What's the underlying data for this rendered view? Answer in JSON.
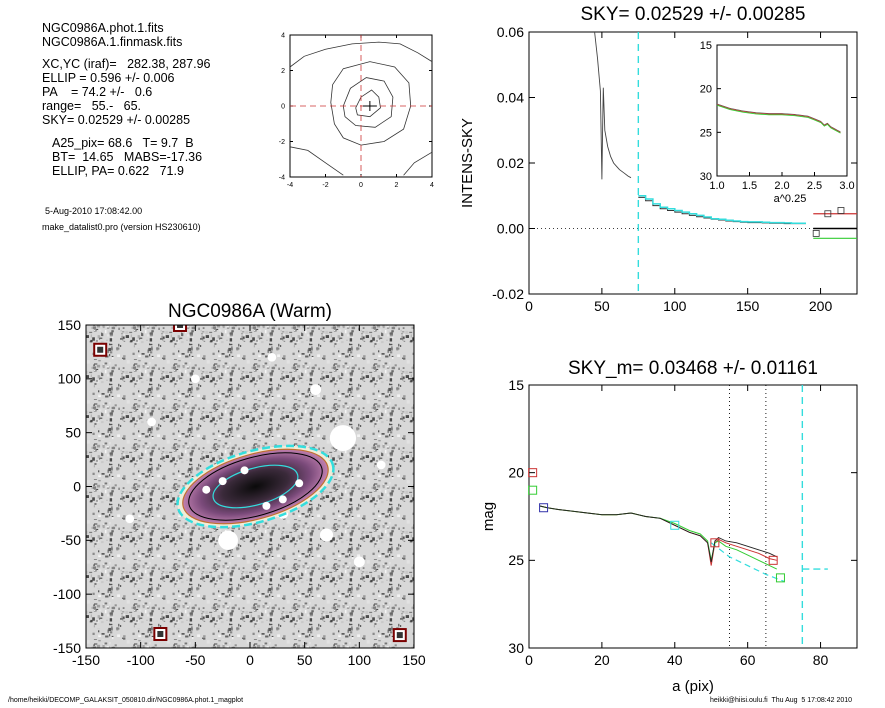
{
  "info": {
    "line1": "NGC0986A.phot.1.fits",
    "line2": "NGC0986A.1.finmask.fits",
    "line3": "XC,YC (iraf)=   282.38, 287.96",
    "line4": "ELLIP = 0.596 +/- 0.006",
    "line5": "PA    = 74.2 +/-   0.6",
    "line6": "range=   55.-   65.",
    "line7": "SKY= 0.02529 +/- 0.00285",
    "line8": "A25_pix= 68.6   T= 9.7  B",
    "line9": "BT=  14.65   MABS=-17.36",
    "line10": "ELLIP, PA= 0.622   71.9",
    "date": "5-Aug-2010 17:08:42.00",
    "version": "make_datalist0.pro (version HS230610)"
  },
  "footer": {
    "path": "/home/heikki/DECOMP_GALAKSIT_050810.dir/NGC0986A.phot.1_magplot",
    "user": "heikki@hiisi.oulu.fi  Thu Aug  5 17:08:42 2010"
  },
  "colors": {
    "cyan": "#33dddd",
    "red": "#cc3333",
    "green": "#33cc33",
    "grey": "#888888",
    "dark": "#222222"
  },
  "chart_data": [
    {
      "id": "contour",
      "type": "line",
      "title": "",
      "xlim": [
        -4,
        4
      ],
      "ylim": [
        -4,
        4
      ],
      "xticks": [
        -4,
        -2,
        0,
        2,
        4
      ],
      "yticks": [
        -4,
        -2,
        0,
        2,
        4
      ],
      "xtick_labels": [
        "-4",
        "-2",
        "0",
        "2",
        "4"
      ],
      "ytick_labels": [
        "-4",
        "-2",
        "0",
        "2",
        "4"
      ],
      "center": [
        0.5,
        0.0
      ],
      "contours": [
        [
          [
            -0.3,
            -0.1
          ],
          [
            0.0,
            0.5
          ],
          [
            0.6,
            0.9
          ],
          [
            1.0,
            0.5
          ],
          [
            1.1,
            -0.1
          ],
          [
            0.5,
            -0.6
          ],
          [
            -0.2,
            -0.5
          ],
          [
            -0.3,
            -0.1
          ]
        ],
        [
          [
            -1.0,
            0.0
          ],
          [
            -0.6,
            1.0
          ],
          [
            0.3,
            1.6
          ],
          [
            1.3,
            1.4
          ],
          [
            1.8,
            0.5
          ],
          [
            1.7,
            -0.6
          ],
          [
            0.8,
            -1.2
          ],
          [
            -0.3,
            -1.1
          ],
          [
            -0.9,
            -0.6
          ],
          [
            -1.0,
            0.0
          ]
        ],
        [
          [
            -1.6,
            1.2
          ],
          [
            -1.0,
            2.1
          ],
          [
            0.5,
            2.5
          ],
          [
            1.9,
            2.2
          ],
          [
            2.7,
            1.3
          ],
          [
            2.8,
            0.0
          ],
          [
            2.4,
            -1.3
          ],
          [
            1.3,
            -2.0
          ],
          [
            0.0,
            -2.2
          ],
          [
            -1.0,
            -1.8
          ],
          [
            -1.5,
            -1.0
          ],
          [
            -1.7,
            0.2
          ],
          [
            -1.6,
            1.2
          ]
        ],
        [
          [
            -4.0,
            2.2
          ],
          [
            -3.2,
            2.8
          ],
          [
            -2.0,
            3.2
          ],
          [
            -0.5,
            3.5
          ],
          [
            1.0,
            3.6
          ],
          [
            2.2,
            3.5
          ],
          [
            3.2,
            3.0
          ],
          [
            4.0,
            2.5
          ]
        ],
        [
          [
            -4.0,
            -2.3
          ],
          [
            -3.0,
            -2.5
          ],
          [
            -2.0,
            -3.2
          ],
          [
            -1.0,
            -3.9
          ]
        ],
        [
          [
            2.4,
            -3.9
          ],
          [
            3.0,
            -3.2
          ],
          [
            4.0,
            -2.6
          ]
        ]
      ]
    },
    {
      "id": "sky",
      "type": "line",
      "title": "SKY= 0.02529 +/- 0.00285",
      "xlabel": "",
      "ylabel": "INTENS-SKY",
      "xlim": [
        0,
        225
      ],
      "ylim": [
        -0.02,
        0.06
      ],
      "xticks": [
        0,
        50,
        100,
        150,
        200
      ],
      "xtick_labels": [
        "0",
        "50",
        "100",
        "150",
        "200"
      ],
      "yticks": [
        -0.02,
        0.0,
        0.02,
        0.04,
        0.06
      ],
      "ytick_labels": [
        "-0.02",
        "0.00",
        "0.02",
        "0.04",
        "0.06"
      ],
      "profile": {
        "x": [
          45,
          47,
          49,
          50,
          50.5,
          51,
          52,
          54,
          56,
          58,
          60,
          62,
          65,
          68,
          70
        ],
        "y": [
          0.06,
          0.052,
          0.042,
          0.015,
          0.03,
          0.043,
          0.03,
          0.025,
          0.022,
          0.02,
          0.019,
          0.018,
          0.017,
          0.016,
          0.0155
        ]
      },
      "steps_cyan": {
        "x": [
          75,
          80,
          85,
          90,
          95,
          100,
          105,
          110,
          115,
          120,
          125,
          130,
          135,
          140,
          145,
          150,
          155,
          160,
          165,
          170,
          175,
          180,
          185
        ],
        "y": [
          0.01,
          0.009,
          0.0075,
          0.0065,
          0.006,
          0.0055,
          0.005,
          0.0045,
          0.004,
          0.0035,
          0.003,
          0.0028,
          0.0025,
          0.0023,
          0.0021,
          0.002,
          0.002,
          0.0019,
          0.0018,
          0.0018,
          0.0017,
          0.0016,
          0.0016
        ]
      },
      "steps_dark": {
        "x": [
          75,
          80,
          85,
          90,
          95,
          100,
          105,
          110,
          115,
          120,
          125,
          130,
          135,
          140,
          145,
          150,
          155,
          160,
          165,
          170,
          175,
          180,
          185
        ],
        "y": [
          0.0095,
          0.0085,
          0.007,
          0.006,
          0.0055,
          0.005,
          0.0045,
          0.004,
          0.0036,
          0.0032,
          0.0028,
          0.0026,
          0.0023,
          0.0021,
          0.0019,
          0.0018,
          0.0018,
          0.0017,
          0.0016,
          0.0016,
          0.0015,
          0.0015,
          0.0015
        ]
      },
      "squares": [
        [
          197,
          -0.0015
        ],
        [
          205,
          0.0045
        ],
        [
          214,
          0.0055
        ]
      ],
      "sky_lines": {
        "black": 0.0,
        "green": -0.003,
        "red": 0.0045,
        "x_range": [
          195,
          225
        ]
      },
      "vline_cyan": 75,
      "inset": {
        "xlim": [
          1.0,
          3.0
        ],
        "ylim": [
          30,
          15
        ],
        "xlabel": "a^0.25",
        "xticks": [
          1.0,
          1.5,
          2.0,
          2.5,
          3.0
        ],
        "xtick_labels": [
          "1.0",
          "1.5",
          "2.0",
          "2.5",
          "3.0"
        ],
        "yticks": [
          15,
          20,
          25,
          30
        ],
        "ytick_labels": [
          "15",
          "20",
          "25",
          "30"
        ],
        "x": [
          1.0,
          1.2,
          1.4,
          1.6,
          1.8,
          2.0,
          2.2,
          2.4,
          2.5,
          2.6,
          2.65,
          2.7,
          2.75,
          2.8,
          2.85,
          2.9
        ],
        "y": [
          21.8,
          22.3,
          22.6,
          22.8,
          22.9,
          22.9,
          23.0,
          23.2,
          23.5,
          23.8,
          24.2,
          24.0,
          24.4,
          24.6,
          24.8,
          25.0
        ]
      }
    },
    {
      "id": "image",
      "type": "heatmap",
      "title": "NGC0986A (Warm)",
      "xlim": [
        -150,
        150
      ],
      "ylim": [
        -150,
        150
      ],
      "xticks": [
        -150,
        -100,
        -50,
        0,
        50,
        100,
        150
      ],
      "xtick_labels": [
        "-150",
        "-100",
        "-50",
        "0",
        "50",
        "100",
        "150"
      ],
      "yticks": [
        -150,
        -100,
        -50,
        0,
        50,
        100,
        150
      ],
      "ytick_labels": [
        "-150",
        "-100",
        "-50",
        "0",
        "50",
        "100",
        "150"
      ],
      "galaxy": {
        "cx": 5,
        "cy": 0,
        "a": 70,
        "b": 30,
        "pa_deg": 74.2
      },
      "inner_ellipse": {
        "a": 40,
        "b": 17
      },
      "masked_boxes": [
        [
          -137,
          127
        ],
        [
          -64,
          150
        ],
        [
          -82,
          -137
        ],
        [
          137,
          -138
        ]
      ],
      "blobs": [
        [
          -30,
          0,
          5
        ],
        [
          -10,
          20,
          4
        ],
        [
          30,
          -25,
          5
        ],
        [
          -15,
          -20,
          4
        ],
        [
          45,
          5,
          4
        ],
        [
          85,
          45,
          12
        ],
        [
          -20,
          -50,
          9
        ],
        [
          70,
          -45,
          6
        ],
        [
          -90,
          60,
          4
        ],
        [
          100,
          -70,
          5
        ],
        [
          60,
          90,
          5
        ],
        [
          -50,
          100,
          4
        ],
        [
          20,
          120,
          4
        ],
        [
          -110,
          -30,
          4
        ],
        [
          120,
          20,
          4
        ]
      ]
    },
    {
      "id": "mag",
      "type": "line",
      "title": "SKY_m=  0.03468 +/- 0.01161",
      "xlabel": "a (pix)",
      "ylabel": "mag",
      "xlim": [
        0,
        90
      ],
      "ylim": [
        30,
        15
      ],
      "xticks": [
        0,
        20,
        40,
        60,
        80
      ],
      "xtick_labels": [
        "0",
        "20",
        "40",
        "60",
        "80"
      ],
      "yticks": [
        15,
        20,
        25,
        30
      ],
      "ytick_labels": [
        "15",
        "20",
        "25",
        "30"
      ],
      "series": [
        {
          "x": [
            3,
            5,
            8,
            12,
            16,
            20,
            24,
            28,
            32,
            36,
            40,
            44,
            47,
            49,
            50,
            51,
            52,
            54,
            57,
            60,
            63,
            66,
            68
          ],
          "y": [
            21.9,
            22.0,
            22.1,
            22.2,
            22.3,
            22.4,
            22.4,
            22.3,
            22.5,
            22.6,
            23.0,
            23.4,
            23.6,
            24.0,
            25.3,
            24.0,
            23.8,
            24.0,
            24.2,
            24.4,
            24.6,
            24.9,
            25.0
          ]
        },
        {
          "x": [
            3,
            5,
            8,
            12,
            16,
            20,
            24,
            28,
            32,
            36,
            40,
            44,
            47,
            49,
            50,
            51,
            52,
            54,
            57,
            60,
            63,
            66,
            68
          ],
          "y": [
            21.9,
            22.0,
            22.1,
            22.2,
            22.3,
            22.4,
            22.4,
            22.3,
            22.5,
            22.6,
            22.9,
            23.3,
            23.5,
            23.9,
            25.0,
            24.0,
            23.9,
            24.2,
            24.4,
            24.7,
            25.0,
            25.3,
            25.5
          ]
        },
        {
          "x": [
            3,
            5,
            8,
            12,
            16,
            20,
            24,
            28,
            32,
            36,
            40,
            44,
            47,
            49,
            50,
            51,
            52,
            54,
            57,
            60,
            63,
            66,
            68
          ],
          "y": [
            21.9,
            22.0,
            22.1,
            22.2,
            22.3,
            22.4,
            22.4,
            22.3,
            22.5,
            22.6,
            23.0,
            23.4,
            23.6,
            24.0,
            25.1,
            23.9,
            23.7,
            23.9,
            24.0,
            24.2,
            24.4,
            24.6,
            24.8
          ]
        }
      ],
      "cyan_dash": {
        "x": [
          50,
          55,
          60,
          65,
          70
        ],
        "y": [
          24.0,
          24.8,
          25.3,
          25.8,
          26.2
        ]
      },
      "squares_red": [
        [
          1,
          20.0
        ],
        [
          51,
          24.0
        ],
        [
          67,
          25.0
        ]
      ],
      "squares_green": [
        [
          1,
          21.0
        ],
        [
          69,
          26.0
        ]
      ],
      "squares_blue": [
        [
          4,
          22.0
        ]
      ],
      "squares_cyan": [
        [
          40,
          23.0
        ]
      ],
      "vlines_dotted": [
        55,
        65
      ],
      "vline_cyan": 75,
      "sky_level": {
        "x": [
          75,
          82
        ],
        "y": 25.5
      }
    }
  ]
}
